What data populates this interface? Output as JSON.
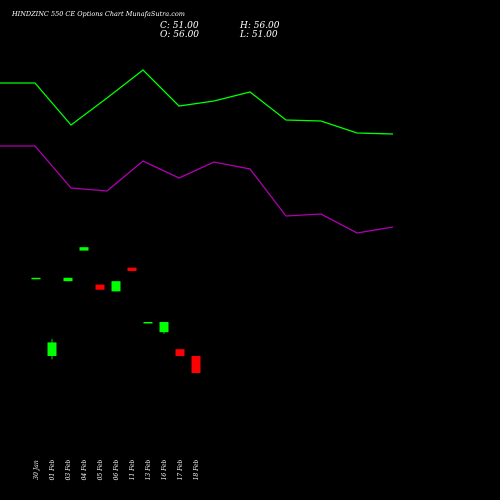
{
  "chart_data": {
    "type": "candlestick",
    "title": "HINDZINC 550  CE Options  Chart MunafaSutra.com",
    "ohlc_readout": {
      "C": "C: 51.00",
      "O": "O: 56.00",
      "H": "H: 56.00",
      "L": "L: 51.00"
    },
    "categories": [
      "30 Jan",
      "01 Feb",
      "03 Feb",
      "04 Feb",
      "05 Feb",
      "06 Feb",
      "11 Feb",
      "13 Feb",
      "16 Feb",
      "17 Feb",
      "18 Feb"
    ],
    "upper_line": [
      83,
      83,
      125,
      98,
      70,
      106,
      101,
      92,
      120,
      121,
      133,
      134
    ],
    "lower_line": [
      146,
      146,
      188,
      191,
      161,
      178,
      162,
      169,
      216,
      214,
      233,
      227
    ],
    "candles": [
      {
        "date": "30 Jan",
        "open": 79.0,
        "high": 79.0,
        "low": 79.0,
        "close": 79.0
      },
      {
        "date": "01 Feb",
        "open": 56.0,
        "high": 61.0,
        "low": 55.0,
        "close": 60.0
      },
      {
        "date": "03 Feb",
        "open": 78.0,
        "high": 79.0,
        "low": 78.0,
        "close": 79.0
      },
      {
        "date": "04 Feb",
        "open": 87.0,
        "high": 88.0,
        "low": 87.0,
        "close": 88.0
      },
      {
        "date": "05 Feb",
        "open": 77.0,
        "high": 77.0,
        "low": 75.5,
        "close": 75.5
      },
      {
        "date": "06 Feb",
        "open": 75.0,
        "high": 78.0,
        "low": 75.0,
        "close": 78.0
      },
      {
        "date": "11 Feb",
        "open": 82.0,
        "high": 82.0,
        "low": 81.0,
        "close": 81.0
      },
      {
        "date": "13 Feb",
        "open": 66.0,
        "high": 66.0,
        "low": 66.0,
        "close": 66.0
      },
      {
        "date": "16 Feb",
        "open": 63.0,
        "high": 66.0,
        "low": 62.5,
        "close": 66.0
      },
      {
        "date": "17 Feb",
        "open": 58.0,
        "high": 58.0,
        "low": 56.0,
        "close": 56.0
      },
      {
        "date": "18 Feb",
        "open": 56.0,
        "high": 56.0,
        "low": 51.0,
        "close": 51.0
      }
    ],
    "colors": {
      "background": "#000000",
      "up": "#00ff00",
      "down": "#ff0000",
      "upper_line": "#00ff00",
      "lower_line": "#b000b0",
      "text": "#ffffff"
    }
  }
}
